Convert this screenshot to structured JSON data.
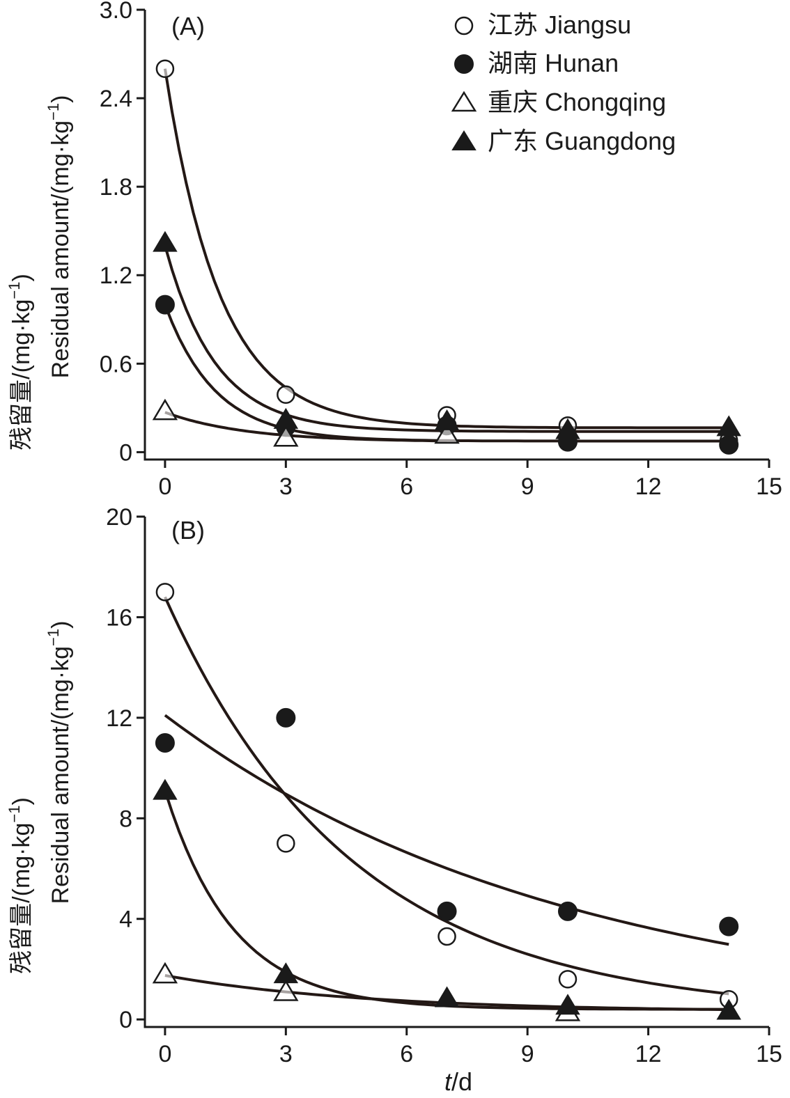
{
  "legend": [
    {
      "key": "jiangsu",
      "label": "江苏 Jiangsu",
      "marker": "circle-open"
    },
    {
      "key": "hunan",
      "label": "湖南 Hunan",
      "marker": "circle-filled"
    },
    {
      "key": "chongqing",
      "label": "重庆 Chongqing",
      "marker": "triangle-open"
    },
    {
      "key": "guangdong",
      "label": "广东 Guangdong",
      "marker": "triangle-filled"
    }
  ],
  "colors": {
    "ink": "#1a1a1a",
    "curve": "#231815",
    "open_fill": "#ffffff"
  },
  "chart_data": [
    {
      "type": "scatter",
      "panel_label": "(A)",
      "title": "",
      "ylabel_cn": "残留量/(mg·kg",
      "ylabel_en": "Residual amount/(mg·kg",
      "ylabel_sup": "−1",
      "ylabel_close": ")",
      "xlabel": "",
      "xlim": [
        -0.5,
        15
      ],
      "ylim": [
        -0.05,
        3.0
      ],
      "xticks": [
        0,
        3,
        6,
        9,
        12,
        15
      ],
      "xtick_labels": [
        "0",
        "3",
        "6",
        "9",
        "12",
        "15"
      ],
      "yticks": [
        0,
        0.6,
        1.2,
        1.8,
        2.4,
        3.0
      ],
      "ytick_labels": [
        "0",
        "0.6",
        "1.2",
        "1.8",
        "2.4",
        "3.0"
      ],
      "series": [
        {
          "name": "江苏 Jiangsu",
          "marker": "circle-open",
          "x": [
            0,
            3,
            7,
            10,
            14
          ],
          "y": [
            2.6,
            0.39,
            0.25,
            0.18,
            0.08
          ],
          "fit": {
            "c0": 0.165,
            "a": 2.435,
            "k": 0.73,
            "x_start": 0,
            "x_end": 14
          }
        },
        {
          "name": "湖南 Hunan",
          "marker": "circle-filled",
          "x": [
            0,
            3,
            7,
            10,
            14
          ],
          "y": [
            1.0,
            0.17,
            0.18,
            0.07,
            0.05
          ],
          "fit": {
            "c0": 0.075,
            "a": 0.925,
            "k": 0.8,
            "x_start": 0,
            "x_end": 14
          }
        },
        {
          "name": "重庆 Chongqing",
          "marker": "triangle-open",
          "x": [
            0,
            3,
            7
          ],
          "y": [
            0.28,
            0.1,
            0.12
          ],
          "fit": {
            "c0": 0.07,
            "a": 0.2,
            "k": 0.5,
            "x_start": 0,
            "x_end": 7
          }
        },
        {
          "name": "广东 Guangdong",
          "marker": "triangle-filled",
          "x": [
            0,
            3,
            7,
            10,
            14
          ],
          "y": [
            1.42,
            0.22,
            0.21,
            0.15,
            0.17
          ],
          "fit": {
            "c0": 0.14,
            "a": 1.26,
            "k": 0.8,
            "x_start": 0,
            "x_end": 14
          }
        }
      ]
    },
    {
      "type": "scatter",
      "panel_label": "(B)",
      "title": "",
      "ylabel_cn": "残留量/(mg·kg",
      "ylabel_en": "Residual amount/(mg·kg",
      "ylabel_sup": "−1",
      "ylabel_close": ")",
      "xlabel_italic": "t",
      "xlabel_rest": "/d",
      "xlim": [
        -0.5,
        15
      ],
      "ylim": [
        -0.3,
        20
      ],
      "xticks": [
        0,
        3,
        6,
        9,
        12,
        15
      ],
      "xtick_labels": [
        "0",
        "3",
        "6",
        "9",
        "12",
        "15"
      ],
      "yticks": [
        0,
        4,
        8,
        12,
        16,
        20
      ],
      "ytick_labels": [
        "0",
        "4",
        "8",
        "12",
        "16",
        "20"
      ],
      "series": [
        {
          "name": "江苏 Jiangsu",
          "marker": "circle-open",
          "x": [
            0,
            3,
            7,
            10,
            14
          ],
          "y": [
            17.0,
            7.0,
            3.3,
            1.6,
            0.8
          ],
          "fit": {
            "c0": 0.2,
            "a": 16.6,
            "k": 0.215,
            "x_start": 0,
            "x_end": 14
          }
        },
        {
          "name": "湖南 Hunan",
          "marker": "circle-filled",
          "x": [
            0,
            3,
            7,
            10,
            14
          ],
          "y": [
            11.0,
            12.0,
            4.3,
            4.3,
            3.7
          ],
          "fit": {
            "c0": 0.0,
            "a": 12.1,
            "k": 0.1,
            "x_start": 0,
            "x_end": 14
          }
        },
        {
          "name": "重庆 Chongqing",
          "marker": "triangle-open",
          "x": [
            0,
            3,
            10
          ],
          "y": [
            1.8,
            1.1,
            0.3
          ],
          "fit": {
            "c0": 0.3,
            "a": 1.45,
            "k": 0.2,
            "x_start": 0,
            "x_end": 14
          }
        },
        {
          "name": "广东 Guangdong",
          "marker": "triangle-filled",
          "x": [
            0,
            3,
            7,
            10,
            14
          ],
          "y": [
            9.1,
            1.8,
            0.85,
            0.55,
            0.35
          ],
          "fit": {
            "c0": 0.4,
            "a": 8.7,
            "k": 0.59,
            "x_start": 0,
            "x_end": 14
          }
        }
      ]
    }
  ]
}
